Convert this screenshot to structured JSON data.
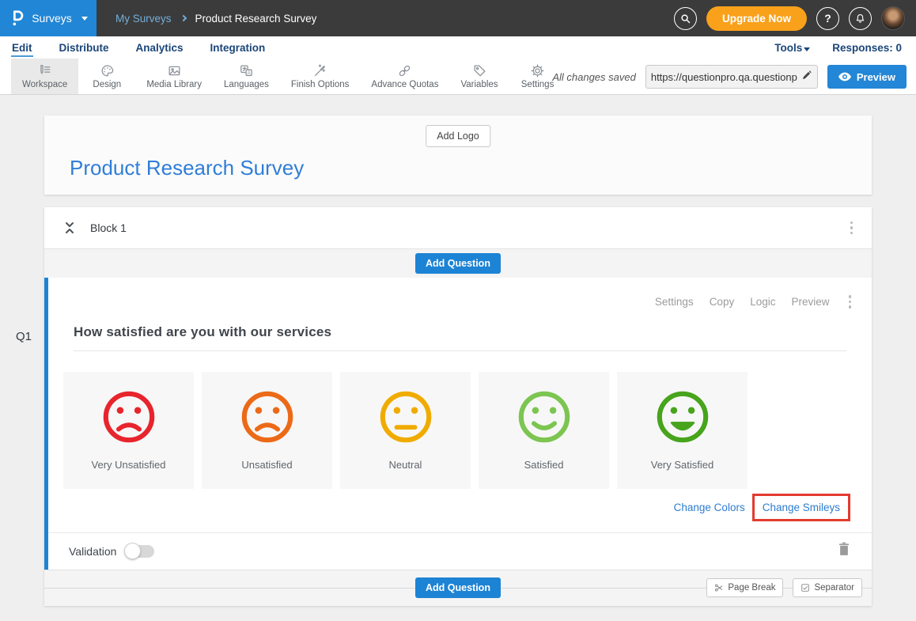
{
  "header": {
    "app_menu_label": "Surveys",
    "breadcrumb": [
      "My Surveys",
      "Product Research Survey"
    ],
    "upgrade_label": "Upgrade Now",
    "help_label": "?"
  },
  "nav": {
    "tabs": [
      "Edit",
      "Distribute",
      "Analytics",
      "Integration"
    ],
    "active_tab": "Edit",
    "tools_label": "Tools",
    "responses_label": "Responses: 0"
  },
  "toolbar": {
    "items": [
      "Workspace",
      "Design",
      "Media Library",
      "Languages",
      "Finish Options",
      "Advance Quotas",
      "Variables",
      "Settings"
    ],
    "active_item": "Workspace",
    "save_status": "All changes saved",
    "url_value": "https://questionpro.qa.questionp",
    "preview_label": "Preview"
  },
  "survey": {
    "add_logo_label": "Add Logo",
    "title": "Product Research Survey"
  },
  "block": {
    "title": "Block 1",
    "add_question_label": "Add Question",
    "bottom_add_question_label": "Add Question",
    "page_break_label": "Page Break",
    "separator_label": "Separator"
  },
  "question": {
    "id_label": "Q1",
    "actions": [
      "Settings",
      "Copy",
      "Logic",
      "Preview"
    ],
    "title": "How satisfied are you with our services",
    "options": [
      {
        "label": "Very Unsatisfied",
        "color": "#e8242c",
        "mouth": "sad"
      },
      {
        "label": "Unsatisfied",
        "color": "#ec6a17",
        "mouth": "sad"
      },
      {
        "label": "Neutral",
        "color": "#f0ab00",
        "mouth": "neutral"
      },
      {
        "label": "Satisfied",
        "color": "#7cc550",
        "mouth": "smile"
      },
      {
        "label": "Very Satisfied",
        "color": "#47a41c",
        "mouth": "grin"
      }
    ],
    "change_colors_label": "Change Colors",
    "change_smileys_label": "Change Smileys",
    "validation_label": "Validation",
    "validation_on": false
  },
  "colors": {
    "accent_blue": "#2386d6",
    "upgrade_orange": "#f9a11b",
    "annotation_red": "#e23b2e",
    "topbar_dark": "#3b3b3b",
    "nav_navy": "#1b4679"
  }
}
